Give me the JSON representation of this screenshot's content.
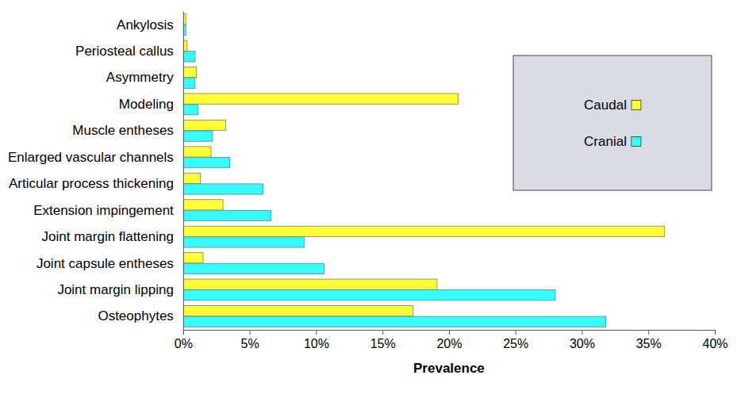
{
  "chart_data": {
    "type": "bar",
    "orientation": "horizontal",
    "categories": [
      "Ankylosis",
      "Periosteal callus",
      "Asymmetry",
      "Modeling",
      "Muscle entheses",
      "Enlarged vascular channels",
      "Articular process thickening",
      "Extension impingement",
      "Joint margin flattening",
      "Joint capsule entheses",
      "Joint margin lipping",
      "Osteophytes"
    ],
    "series": [
      {
        "name": "Caudal",
        "color": "#ffff33",
        "values": [
          0.2,
          0.3,
          1.0,
          20.7,
          3.2,
          2.1,
          1.3,
          3.0,
          36.2,
          1.5,
          19.1,
          17.3
        ]
      },
      {
        "name": "Cranial",
        "color": "#33ffff",
        "values": [
          0.2,
          0.9,
          0.9,
          1.1,
          2.2,
          3.5,
          6.0,
          6.6,
          9.1,
          10.6,
          28.0,
          31.8
        ]
      }
    ],
    "x_label": "Prevalence",
    "xlim": [
      0,
      40
    ],
    "xticks": [
      {
        "value": 0,
        "label": "0%"
      },
      {
        "value": 5,
        "label": "5%"
      },
      {
        "value": 10,
        "label": "10%"
      },
      {
        "value": 15,
        "label": "15%"
      },
      {
        "value": 20,
        "label": "20%"
      },
      {
        "value": 25,
        "label": "25%"
      },
      {
        "value": 30,
        "label": "30%"
      },
      {
        "value": 35,
        "label": "35%"
      },
      {
        "value": 40,
        "label": "40%"
      }
    ],
    "grid": false,
    "legend": "top-right"
  }
}
